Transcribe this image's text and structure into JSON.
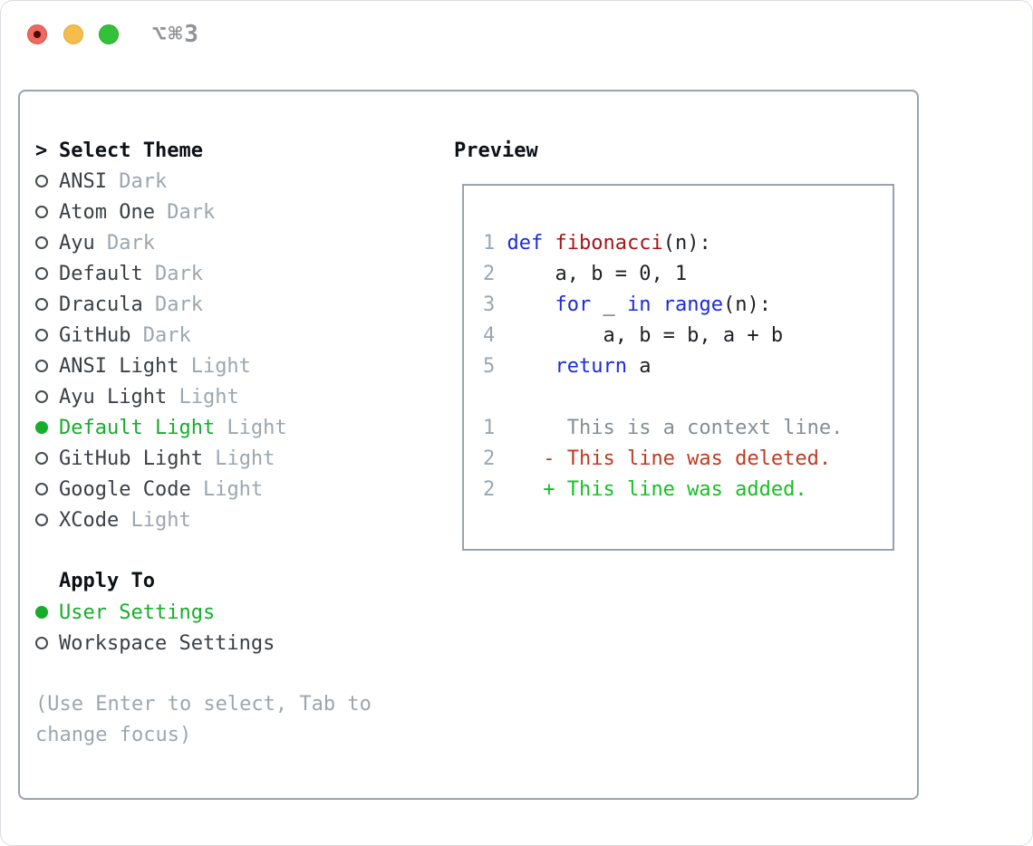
{
  "window": {
    "title": "⌥⌘3"
  },
  "theme_panel": {
    "cursor": ">",
    "title": "Select Theme",
    "items": [
      {
        "name": "ANSI",
        "variant": "Dark",
        "selected": false
      },
      {
        "name": "Atom One",
        "variant": "Dark",
        "selected": false
      },
      {
        "name": "Ayu",
        "variant": "Dark",
        "selected": false
      },
      {
        "name": "Default",
        "variant": "Dark",
        "selected": false
      },
      {
        "name": "Dracula",
        "variant": "Dark",
        "selected": false
      },
      {
        "name": "GitHub",
        "variant": "Dark",
        "selected": false
      },
      {
        "name": "ANSI Light",
        "variant": "Light",
        "selected": false
      },
      {
        "name": "Ayu Light",
        "variant": "Light",
        "selected": false
      },
      {
        "name": "Default Light",
        "variant": "Light",
        "selected": true
      },
      {
        "name": "GitHub Light",
        "variant": "Light",
        "selected": false
      },
      {
        "name": "Google Code",
        "variant": "Light",
        "selected": false
      },
      {
        "name": "XCode",
        "variant": "Light",
        "selected": false
      }
    ]
  },
  "apply_to": {
    "title": "Apply To",
    "options": [
      {
        "label": "User Settings",
        "selected": true
      },
      {
        "label": "Workspace Settings",
        "selected": false
      }
    ]
  },
  "hint": "(Use Enter to select, Tab to change focus)",
  "preview": {
    "title": "Preview",
    "code_lines": [
      {
        "num": "1",
        "tokens": [
          {
            "c": "kw",
            "t": "def"
          },
          {
            "c": "pl",
            "t": " "
          },
          {
            "c": "fn",
            "t": "fibonacci"
          },
          {
            "c": "pl",
            "t": "(n):"
          }
        ]
      },
      {
        "num": "2",
        "tokens": [
          {
            "c": "pl",
            "t": "    a, b = 0, 1"
          }
        ]
      },
      {
        "num": "3",
        "tokens": [
          {
            "c": "pl",
            "t": "    "
          },
          {
            "c": "kw",
            "t": "for"
          },
          {
            "c": "pl",
            "t": " _ "
          },
          {
            "c": "kw",
            "t": "in"
          },
          {
            "c": "pl",
            "t": " "
          },
          {
            "c": "kw",
            "t": "range"
          },
          {
            "c": "pl",
            "t": "(n):"
          }
        ]
      },
      {
        "num": "4",
        "tokens": [
          {
            "c": "pl",
            "t": "        a, b = b, a + b"
          }
        ]
      },
      {
        "num": "5",
        "tokens": [
          {
            "c": "pl",
            "t": "    "
          },
          {
            "c": "kw",
            "t": "return"
          },
          {
            "c": "pl",
            "t": " a"
          }
        ]
      }
    ],
    "diff_lines": [
      {
        "num": "1",
        "sign": "",
        "text": "This is a context line.",
        "type": "context"
      },
      {
        "num": "2",
        "sign": "-",
        "text": "This line was deleted.",
        "type": "deleted"
      },
      {
        "num": "2",
        "sign": "+",
        "text": "This line was added.",
        "type": "added"
      }
    ]
  },
  "colors": {
    "accent_green": "#16ad2b",
    "keyword_blue": "#1a2be0",
    "function_red": "#a81414",
    "diff_deleted_red": "#c23a21",
    "diff_added_green": "#14c022",
    "diff_context_gray": "#848e96",
    "muted_gray": "#9ca6b0",
    "text_dark": "#3b4046",
    "panel_border": "#9aa3ad",
    "traffic_red": "#ee6a5e",
    "traffic_yellow": "#f5bd4c",
    "traffic_green": "#33c13a"
  }
}
